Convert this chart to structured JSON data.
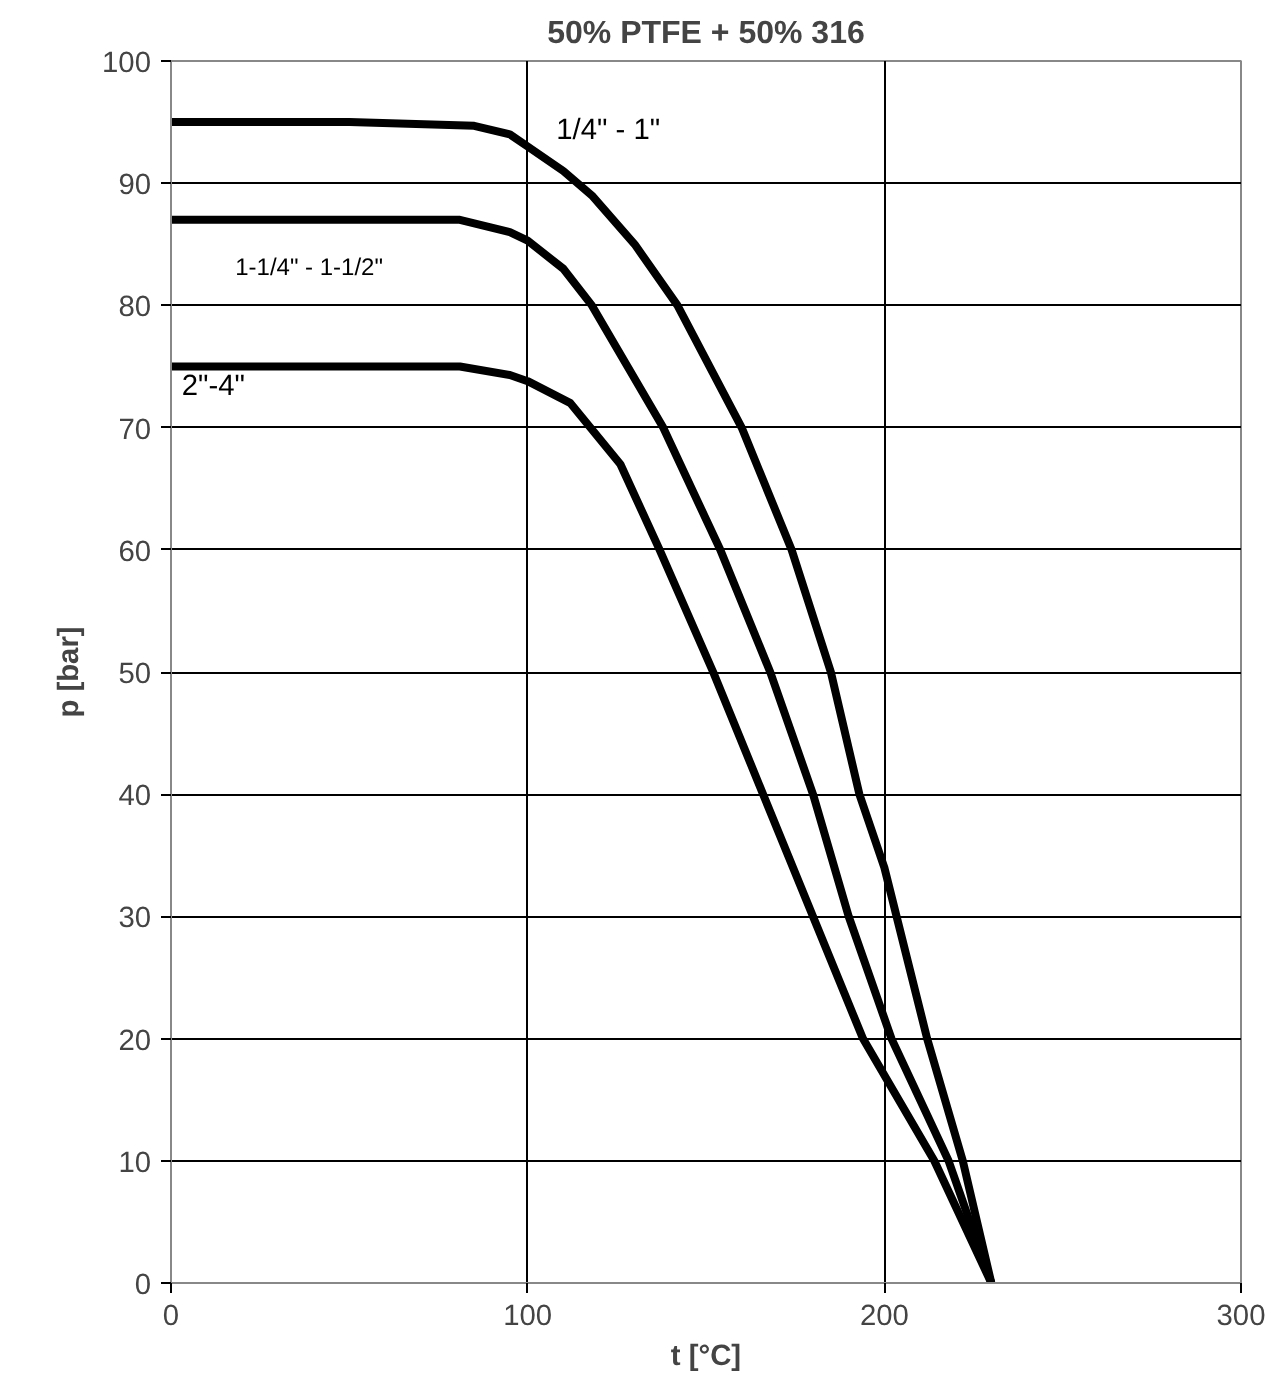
{
  "chart_data": {
    "type": "line",
    "title": "50% PTFE + 50% 316",
    "xlabel": "t [°C]",
    "ylabel": "p [bar]",
    "xlim": [
      0,
      300
    ],
    "ylim": [
      0,
      100
    ],
    "xticks": [
      0,
      100,
      200,
      300
    ],
    "yticks": [
      0,
      10,
      20,
      30,
      40,
      50,
      60,
      70,
      80,
      90,
      100
    ],
    "grid": true,
    "marker": "none",
    "line_style": "solid",
    "series": [
      {
        "name": "1/4\" - 1\"",
        "color": "#000000",
        "x": [
          0,
          50,
          85,
          95,
          100,
          110,
          118,
          130,
          142,
          160,
          174,
          185,
          193,
          200,
          212,
          222,
          230
        ],
        "values": [
          95,
          95,
          94.7,
          94,
          93,
          91,
          89,
          85,
          80,
          70,
          60,
          50,
          40,
          34,
          20,
          10,
          0
        ]
      },
      {
        "name": "1-1/4\" - 1-1/2\"",
        "color": "#000000",
        "x": [
          0,
          50,
          81,
          95,
          100,
          110,
          118,
          128,
          138,
          154,
          168,
          180,
          190,
          202,
          218,
          230
        ],
        "values": [
          87,
          87,
          87,
          86,
          85.3,
          83,
          80,
          75,
          70,
          60,
          50,
          40,
          30,
          20,
          10,
          0
        ]
      },
      {
        "name": "2\"-4\"",
        "color": "#000000",
        "x": [
          0,
          50,
          81,
          95,
          100,
          112,
          126,
          137,
          152,
          166,
          180,
          194,
          214,
          230
        ],
        "values": [
          75,
          75,
          75,
          74.3,
          73.8,
          72,
          67,
          60,
          50,
          40,
          30,
          20,
          10,
          0
        ]
      }
    ]
  }
}
